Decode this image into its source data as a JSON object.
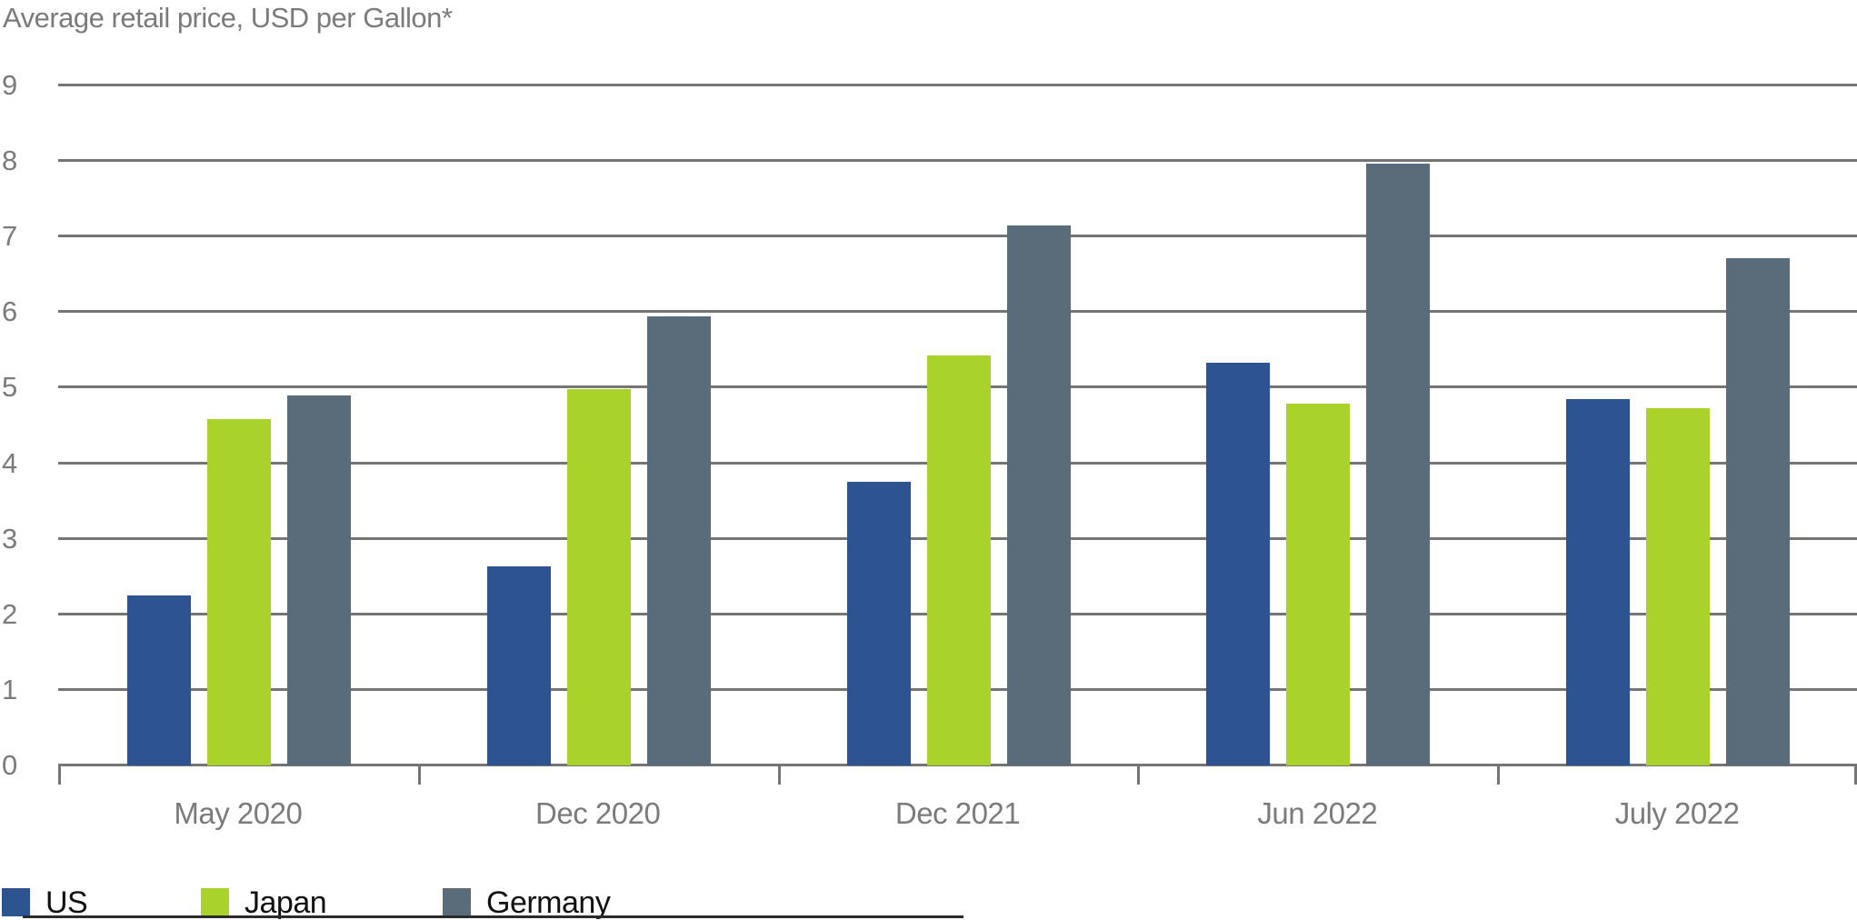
{
  "title": "Average retail price, USD per Gallon*",
  "colors": {
    "us_blue": "#2e5391",
    "japan_green": "#a9d32b",
    "germany_slate": "#5a6c79",
    "grid_gray": "#757575",
    "axis_label_gray": "#7b7b7b",
    "legend_text": "#111111"
  },
  "chart_data": {
    "type": "bar",
    "title": "Average retail price, USD per Gallon*",
    "categories": [
      "May 2020",
      "Dec 2020",
      "Dec 2021",
      "Jun 2022",
      "July 2022"
    ],
    "series": [
      {
        "name": "US",
        "color": "#2e5391",
        "values": [
          2.25,
          2.63,
          3.76,
          5.33,
          4.85
        ]
      },
      {
        "name": "Japan",
        "color": "#a9d32b",
        "values": [
          4.58,
          4.98,
          5.43,
          4.79,
          4.73
        ]
      },
      {
        "name": "Germany",
        "color": "#5a6c79",
        "values": [
          4.9,
          5.94,
          7.15,
          7.97,
          6.72
        ]
      }
    ],
    "xlabel": "",
    "ylabel": "",
    "ylim": [
      0,
      9
    ],
    "yticks": [
      0,
      1,
      2,
      3,
      4,
      5,
      6,
      7,
      8,
      9
    ],
    "grid": true,
    "legend_position": "bottom-left"
  }
}
